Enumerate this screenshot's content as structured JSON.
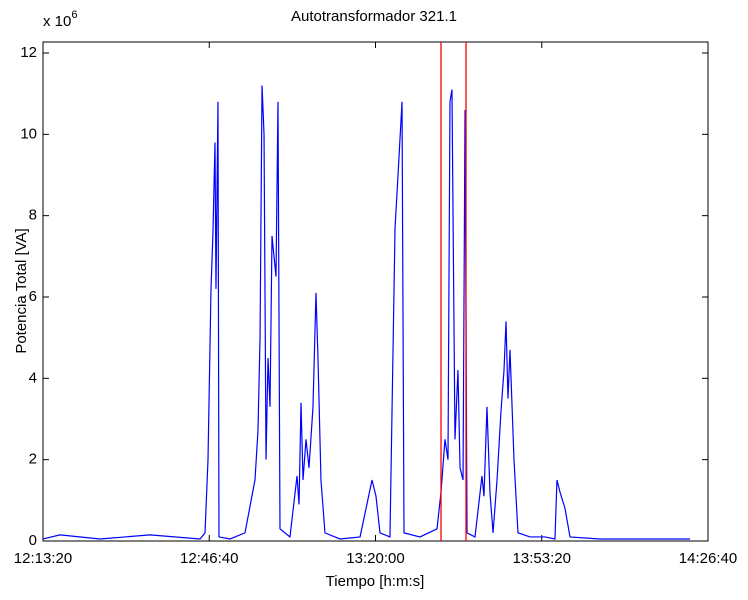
{
  "chart_data": {
    "type": "line",
    "title": "Autotransformador 321.1",
    "x_label": "Tiempo [h:m:s]",
    "y_label": "Potencia Total [VA]",
    "y_multiplier": {
      "base": "x 10",
      "exponent": "6"
    },
    "x": [
      "12:13:20",
      "12:16:45",
      "12:24:46",
      "12:34:47",
      "12:44:49",
      "12:45:49",
      "12:46:25",
      "12:47:01",
      "12:47:25",
      "12:47:49",
      "12:48:01",
      "12:48:25",
      "12:48:37",
      "12:50:50",
      "12:53:50",
      "12:55:50",
      "12:56:26",
      "12:56:51",
      "12:57:15",
      "12:57:39",
      "12:58:03",
      "12:58:27",
      "12:58:51",
      "12:59:15",
      "13:00:03",
      "13:00:27",
      "13:00:51",
      "13:02:51",
      "13:04:16",
      "13:04:40",
      "13:05:04",
      "13:05:28",
      "13:06:04",
      "13:06:40",
      "13:07:28",
      "13:08:04",
      "13:08:28",
      "13:09:04",
      "13:09:52",
      "13:12:53",
      "13:16:54",
      "13:19:18",
      "13:20:06",
      "13:20:54",
      "13:22:54",
      "13:23:55",
      "13:24:31",
      "13:25:19",
      "13:25:43",
      "13:28:55",
      "13:32:20",
      "13:33:08",
      "13:33:56",
      "13:34:32",
      "13:34:56",
      "13:35:20",
      "13:35:56",
      "13:36:32",
      "13:36:57",
      "13:37:33",
      "13:37:57",
      "13:38:21",
      "13:39:57",
      "13:41:21",
      "13:41:45",
      "13:42:21",
      "13:42:57",
      "13:43:34",
      "13:44:22",
      "13:45:10",
      "13:45:46",
      "13:46:10",
      "13:46:34",
      "13:46:58",
      "13:47:46",
      "13:48:34",
      "13:50:59",
      "13:53:59",
      "13:55:59",
      "13:56:23",
      "13:57:00",
      "13:58:00",
      "13:59:00",
      "14:05:01",
      "14:15:02",
      "14:23:03"
    ],
    "series": [
      {
        "name": "Potencia Total",
        "color": "#0000ff",
        "values": [
          0.05,
          0.15,
          0.05,
          0.15,
          0.05,
          0.2,
          2,
          6.2,
          7.6,
          9.8,
          6.2,
          10.8,
          0.1,
          0.05,
          0.2,
          1.5,
          2.7,
          5,
          11.2,
          10,
          2,
          4.5,
          3.3,
          7.5,
          6.5,
          10.8,
          0.3,
          0.1,
          1.6,
          0.9,
          3.4,
          1.5,
          2.5,
          1.8,
          3.3,
          6.1,
          4.5,
          1.5,
          0.2,
          0.05,
          0.1,
          1.5,
          1.1,
          0.2,
          0.1,
          7.7,
          9,
          10.8,
          0.2,
          0.1,
          0.3,
          1.2,
          2.5,
          2,
          10.8,
          11.1,
          2.5,
          4.2,
          1.8,
          1.5,
          10.6,
          0.2,
          0.1,
          1.6,
          1.1,
          3.3,
          1.2,
          0.2,
          1.5,
          3.2,
          4.2,
          5.4,
          3.5,
          4.7,
          2,
          0.2,
          0.1,
          0.1,
          0.05,
          1.5,
          1.2,
          0.8,
          0.1,
          0.05,
          0.05,
          0.05
        ]
      }
    ],
    "vlines": [
      {
        "x": "13:33:08",
        "color": "#ff0000"
      },
      {
        "x": "13:38:09",
        "color": "#ff0000"
      }
    ],
    "xlim": [
      "12:13:20",
      "14:26:40"
    ],
    "xticks": [
      "12:13:20",
      "12:46:40",
      "13:20:00",
      "13:53:20",
      "14:26:40"
    ],
    "ylim": [
      0,
      12.27
    ],
    "yticks": [
      0,
      2,
      4,
      6,
      8,
      10,
      12
    ]
  }
}
